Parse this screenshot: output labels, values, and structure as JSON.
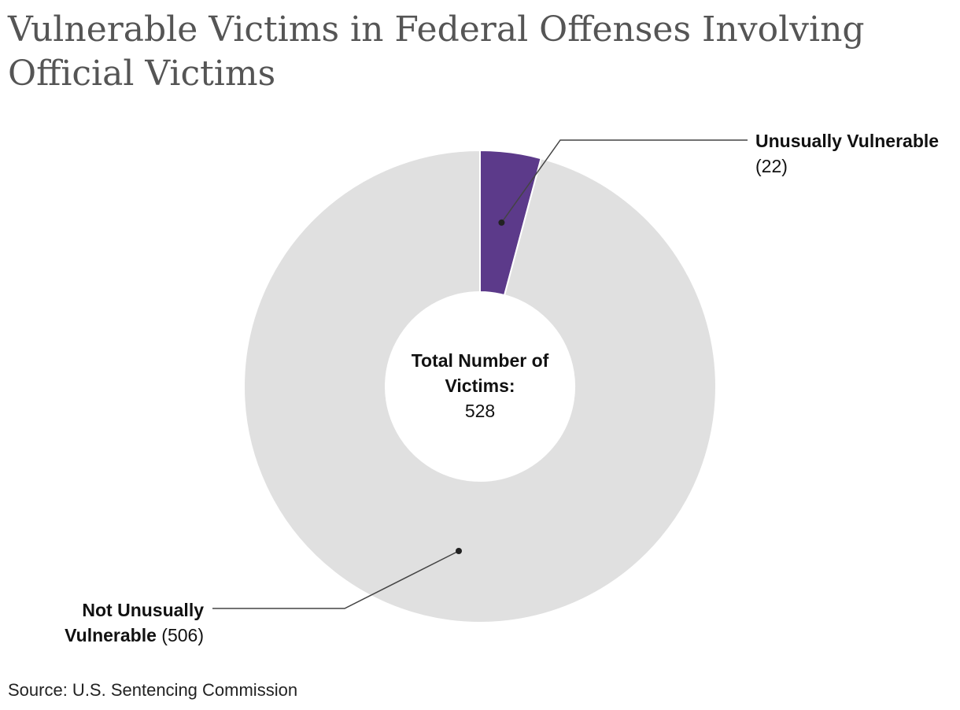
{
  "title_line1": "Vulnerable Victims in Federal Offenses Involving",
  "title_line2": "Official Victims",
  "center": {
    "line1": "Total Number of",
    "line2": "Victims:",
    "value": "528"
  },
  "labels": {
    "unusually_name": "Unusually Vulnerable",
    "unusually_value": "(22)",
    "not_line1": "Not Unusually",
    "not_line2": "Vulnerable",
    "not_value": "(506)"
  },
  "source": "Source: U.S. Sentencing Commission",
  "colors": {
    "unusually": "#5c3a8a",
    "not_unusually": "#e0e0e0",
    "leader": "#444444"
  },
  "chart_data": {
    "type": "pie",
    "variant": "donut",
    "title": "Vulnerable Victims in Federal Offenses Involving Official Victims",
    "total": 528,
    "slices": [
      {
        "label": "Unusually Vulnerable",
        "value": 22,
        "color": "#5c3a8a"
      },
      {
        "label": "Not Unusually Vulnerable",
        "value": 506,
        "color": "#e0e0e0"
      }
    ]
  }
}
